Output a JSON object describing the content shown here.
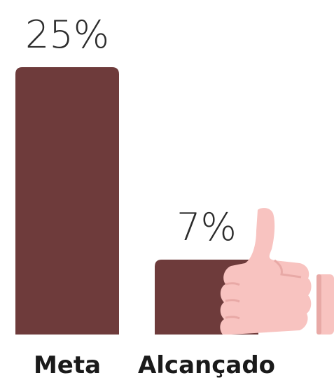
{
  "chart_data": {
    "type": "bar",
    "categories": [
      "Meta",
      "Alcançado"
    ],
    "values": [
      25,
      7
    ],
    "value_labels": [
      "25%",
      "7%"
    ],
    "ylim": [
      0,
      25
    ],
    "grid": false,
    "legend": "none"
  },
  "colors": {
    "bar": "#6e3b3b",
    "thumb": "#f8c3c0",
    "thumb_shadow": "#e8a9a6",
    "text": "#2b2b2b",
    "category_text": "#1a1a1a"
  },
  "icons": {
    "thumb": "thumbs-up-icon"
  }
}
